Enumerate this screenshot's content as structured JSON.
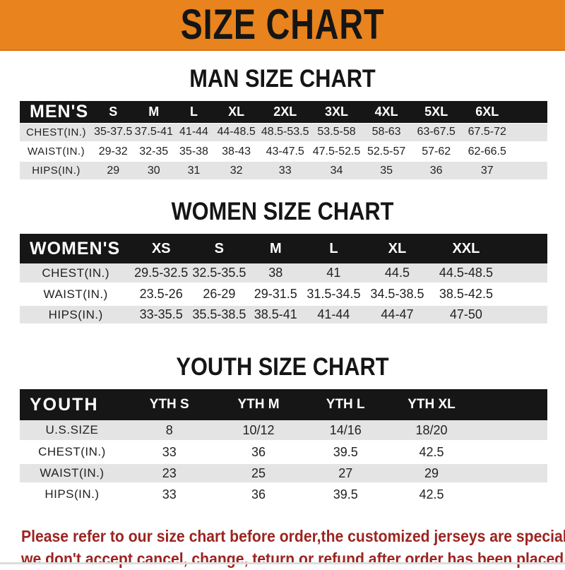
{
  "banner": {
    "title": "SIZE CHART"
  },
  "colors": {
    "banner_bg": "#E8831D",
    "header_bar": "#161616",
    "row_stripe": "#E4E4E4",
    "note_red": "#9C2420"
  },
  "sections": [
    {
      "heading": "MAN SIZE CHART",
      "table": {
        "label": "MEN'S",
        "columns": [
          "S",
          "M",
          "L",
          "XL",
          "2XL",
          "3XL",
          "4XL",
          "5XL",
          "6XL"
        ],
        "rows": [
          {
            "label": "CHEST(IN.)",
            "values": [
              "35-37.5",
              "37.5-41",
              "41-44",
              "44-48.5",
              "48.5-53.5",
              "53.5-58",
              "58-63",
              "63-67.5",
              "67.5-72"
            ]
          },
          {
            "label": "WAIST(IN.)",
            "values": [
              "29-32",
              "32-35",
              "35-38",
              "38-43",
              "43-47.5",
              "47.5-52.5",
              "52.5-57",
              "57-62",
              "62-66.5"
            ]
          },
          {
            "label": "HIPS(IN.)",
            "values": [
              "29",
              "30",
              "31",
              "32",
              "33",
              "34",
              "35",
              "36",
              "37"
            ]
          }
        ]
      }
    },
    {
      "heading": "WOMEN SIZE CHART",
      "table": {
        "label": "WOMEN'S",
        "columns": [
          "XS",
          "S",
          "M",
          "L",
          "XL",
          "XXL"
        ],
        "rows": [
          {
            "label": "CHEST(IN.)",
            "values": [
              "29.5-32.5",
              "32.5-35.5",
              "38",
              "41",
              "44.5",
              "44.5-48.5"
            ]
          },
          {
            "label": "WAIST(IN.)",
            "values": [
              "23.5-26",
              "26-29",
              "29-31.5",
              "31.5-34.5",
              "34.5-38.5",
              "38.5-42.5"
            ]
          },
          {
            "label": "HIPS(IN.)",
            "values": [
              "33-35.5",
              "35.5-38.5",
              "38.5-41",
              "41-44",
              "44-47",
              "47-50"
            ]
          }
        ]
      }
    },
    {
      "heading": "YOUTH SIZE CHART",
      "table": {
        "label": "YOUTH",
        "columns": [
          "YTH S",
          "YTH M",
          "YTH L",
          "YTH XL"
        ],
        "rows": [
          {
            "label": "U.S.SIZE",
            "values": [
              "8",
              "10/12",
              "14/16",
              "18/20"
            ]
          },
          {
            "label": "CHEST(IN.)",
            "values": [
              "33",
              "36",
              "39.5",
              "42.5"
            ]
          },
          {
            "label": "WAIST(IN.)",
            "values": [
              "23",
              "25",
              "27",
              "29"
            ]
          },
          {
            "label": "HIPS(IN.)",
            "values": [
              "33",
              "36",
              "39.5",
              "42.5"
            ]
          }
        ]
      }
    }
  ],
  "note": {
    "lines": [
      "Please refer to our size chart before order,the customized jerseys are special products,",
      "we don't accept cancel, change, teturn or refund after order has been placed!"
    ]
  }
}
